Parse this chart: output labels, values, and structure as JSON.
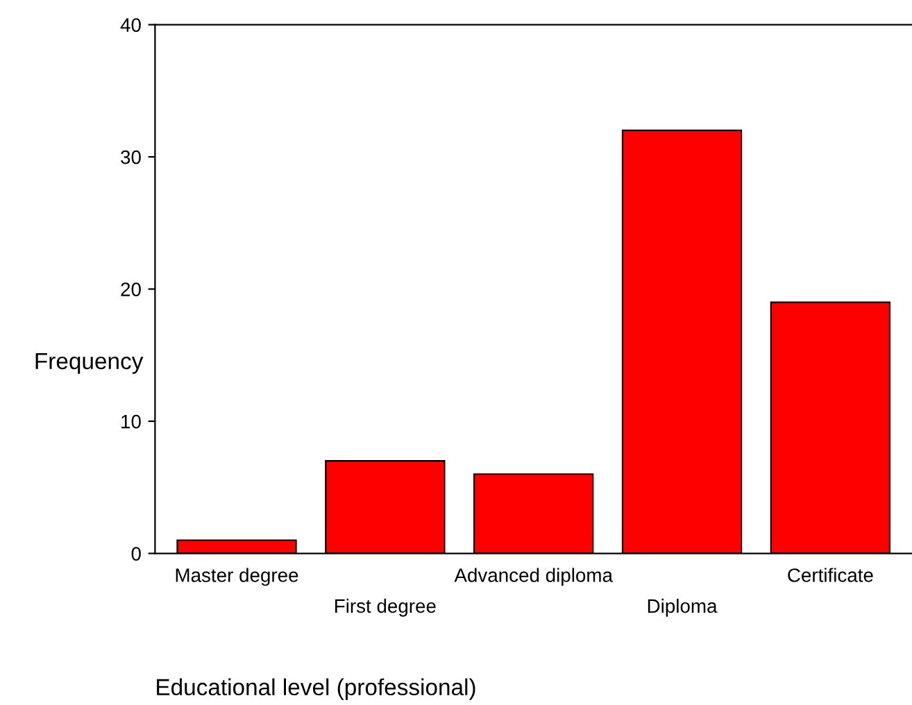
{
  "chart_data": {
    "type": "bar",
    "xlabel": "Educational level (professional)",
    "ylabel": "Frequency",
    "categories": [
      "Master degree",
      "First degree",
      "Advanced diploma",
      "Diploma",
      "Certificate"
    ],
    "values": [
      1,
      7,
      6,
      32,
      19
    ],
    "color": "#ff0000",
    "ylim": [
      0,
      40
    ],
    "yticks": [
      0,
      10,
      20,
      30,
      40
    ],
    "grid": false
  }
}
